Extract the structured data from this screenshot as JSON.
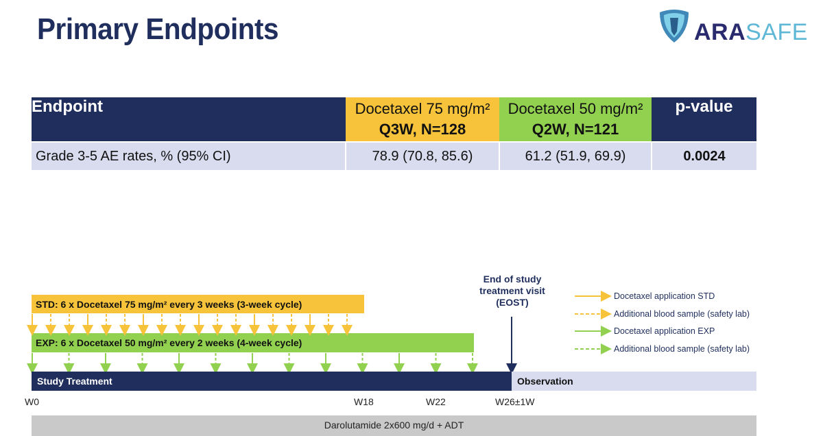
{
  "title": "Primary Endpoints",
  "logo": {
    "part1": "ARA",
    "part2": "SAFE"
  },
  "table": {
    "header": {
      "endpoint": "Endpoint",
      "std_line1": "Docetaxel 75 mg/m²",
      "std_line2": "Q3W, N=128",
      "exp_line1": "Docetaxel 50 mg/m²",
      "exp_line2": "Q2W, N=121",
      "pvalue": "p-value"
    },
    "row": {
      "label": "Grade 3-5 AE rates, % (95% CI)",
      "std": "78.9 (70.8, 85.6)",
      "exp": "61.2 (51.9, 69.9)",
      "pvalue": "0.0024"
    }
  },
  "diagram": {
    "std_label": "STD: 6 x Docetaxel 75 mg/m² every 3 weeks (3-week cycle)",
    "exp_label": "EXP:  6 x Docetaxel 50 mg/m² every 2 weeks (4-week cycle)",
    "eost": {
      "line1": "End of study",
      "line2": "treatment visit",
      "line3": "(EOST)"
    },
    "study_treatment": "Study Treatment",
    "observation": "Observation",
    "weeks": {
      "w0": "W0",
      "w18": "W18",
      "w22": "W22",
      "w26": "W26±1W"
    },
    "darolutamide": "Darolutamide 2x600 mg/d + ADT",
    "legend": [
      {
        "label": "Docetaxel application STD",
        "color": "#f6c33a",
        "dashed": false
      },
      {
        "label": "Additional blood sample (safety lab)",
        "color": "#f6c33a",
        "dashed": true
      },
      {
        "label": "Docetaxel application EXP",
        "color": "#92d050",
        "dashed": false
      },
      {
        "label": "Additional blood sample (safety lab)",
        "color": "#92d050",
        "dashed": true
      }
    ]
  },
  "colors": {
    "navy": "#1f2e5c",
    "std": "#f6c33a",
    "exp": "#92d050",
    "light": "#d9dcef"
  }
}
